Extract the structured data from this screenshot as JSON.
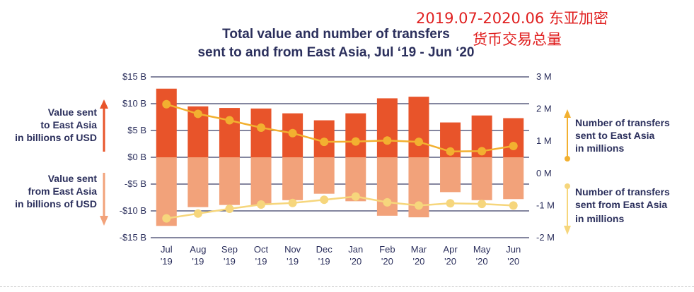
{
  "annotation": {
    "line1": "2019.07-2020.06 东亚加密",
    "line2": "货币交易总量",
    "color": "#e02020"
  },
  "chart_data": {
    "type": "bar",
    "title_lines": [
      "Total value and number of transfers",
      "sent to and from East Asia, Jul ‘19 - Jun ‘20"
    ],
    "categories": [
      "Jul",
      "Aug",
      "Sep",
      "Oct",
      "Nov",
      "Dec",
      "Jan",
      "Feb",
      "Mar",
      "Apr",
      "May",
      "Jun"
    ],
    "category_years": [
      "'19",
      "'19",
      "'19",
      "'19",
      "'19",
      "'19",
      "'20",
      "'20",
      "'20",
      "'20",
      "'20",
      "'20"
    ],
    "left_axis": {
      "label_sent_to": [
        "Value sent",
        "to East Asia",
        "in billions of USD"
      ],
      "label_sent_from": [
        "Value sent",
        "from East Asia",
        "in billions of USD"
      ],
      "ticks": [
        15,
        10,
        5,
        0,
        -5,
        -10,
        -15
      ],
      "tick_labels": [
        "$15 B",
        "$10 B",
        "$5 B",
        "$0 B",
        "-$5 B",
        "-$10 B",
        "-$15 B"
      ],
      "ylim": [
        -15,
        15
      ]
    },
    "right_axis": {
      "label_sent_to": [
        "Number of transfers",
        "sent to East Asia",
        "in millions"
      ],
      "label_sent_from": [
        "Number of transfers",
        "sent from East Asia",
        "in millions"
      ],
      "ticks": [
        3,
        2,
        1,
        0,
        -1,
        -2
      ],
      "tick_labels": [
        "3 M",
        "2 M",
        "1 M",
        "0 M",
        "-1 M",
        "-2 M"
      ],
      "ylim": [
        -2,
        3
      ]
    },
    "series": [
      {
        "kind": "bar",
        "axis": "left",
        "color": "#e8542a",
        "values": [
          12.8,
          9.5,
          9.2,
          9.1,
          8.2,
          6.9,
          8.2,
          11.0,
          11.3,
          6.5,
          7.8,
          7.3
        ]
      },
      {
        "kind": "bar",
        "axis": "left",
        "color": "#f2a27a",
        "values": [
          -12.8,
          -9.3,
          -8.9,
          -8.9,
          -8.0,
          -6.8,
          -8.2,
          -10.9,
          -11.2,
          -6.5,
          -8.0,
          -7.8
        ]
      },
      {
        "kind": "line",
        "axis": "right",
        "color": "#f2b030",
        "values": [
          2.15,
          1.85,
          1.65,
          1.42,
          1.25,
          0.98,
          0.99,
          1.02,
          0.98,
          0.68,
          0.69,
          0.85
        ]
      },
      {
        "kind": "line",
        "axis": "right",
        "color": "#f6d67c",
        "values": [
          -1.4,
          -1.25,
          -1.1,
          -0.97,
          -0.92,
          -0.82,
          -0.72,
          -0.9,
          -1.0,
          -0.93,
          -0.95,
          -1.0
        ]
      }
    ],
    "grid": true
  }
}
